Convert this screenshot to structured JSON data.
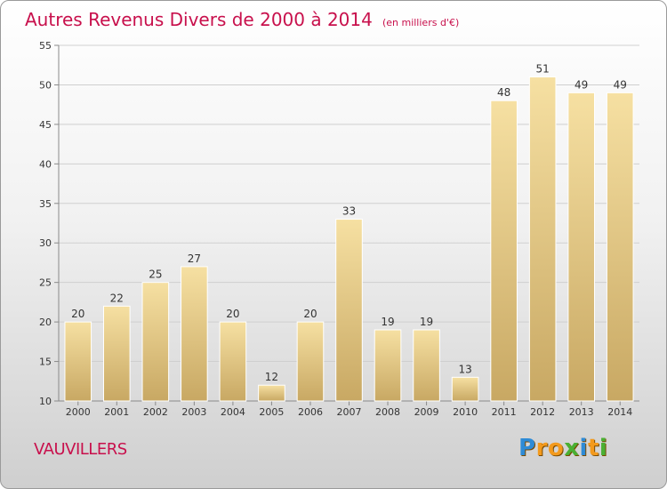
{
  "title": "Autres Revenus Divers de 2000 à 2014",
  "unit": "(en milliers d'€)",
  "commune": "VAUVILLERS",
  "logo": {
    "text": "Proxiti",
    "letters": [
      {
        "ch": "P",
        "color": "#2e8bd6"
      },
      {
        "ch": "r",
        "color": "#f39a1d"
      },
      {
        "ch": "o",
        "color": "#f39a1d"
      },
      {
        "ch": "x",
        "color": "#4ab033"
      },
      {
        "ch": "i",
        "color": "#2e8bd6"
      },
      {
        "ch": "t",
        "color": "#f39a1d"
      },
      {
        "ch": "i",
        "color": "#4ab033"
      }
    ]
  },
  "colors": {
    "title": "#c8104c",
    "bar_top": "#f6e0a2",
    "bar_bottom": "#c8a863",
    "grid": "#cfcfcf",
    "axis": "#8a8a8a",
    "text": "#333333"
  },
  "chart_data": {
    "type": "bar",
    "categories": [
      "2000",
      "2001",
      "2002",
      "2003",
      "2004",
      "2005",
      "2006",
      "2007",
      "2008",
      "2009",
      "2010",
      "2011",
      "2012",
      "2013",
      "2014"
    ],
    "values": [
      20,
      22,
      25,
      27,
      20,
      12,
      20,
      33,
      19,
      19,
      13,
      48,
      51,
      49,
      49
    ],
    "data_labels": [
      "20",
      "22",
      "25",
      "27",
      "20",
      "12",
      "20",
      "33",
      "19",
      "19",
      "13",
      "48",
      "51",
      "49",
      "49"
    ],
    "ylim": [
      10,
      55
    ],
    "yticks": [
      10,
      15,
      20,
      25,
      30,
      35,
      40,
      45,
      50,
      55
    ],
    "grid": true,
    "legend": "none"
  }
}
